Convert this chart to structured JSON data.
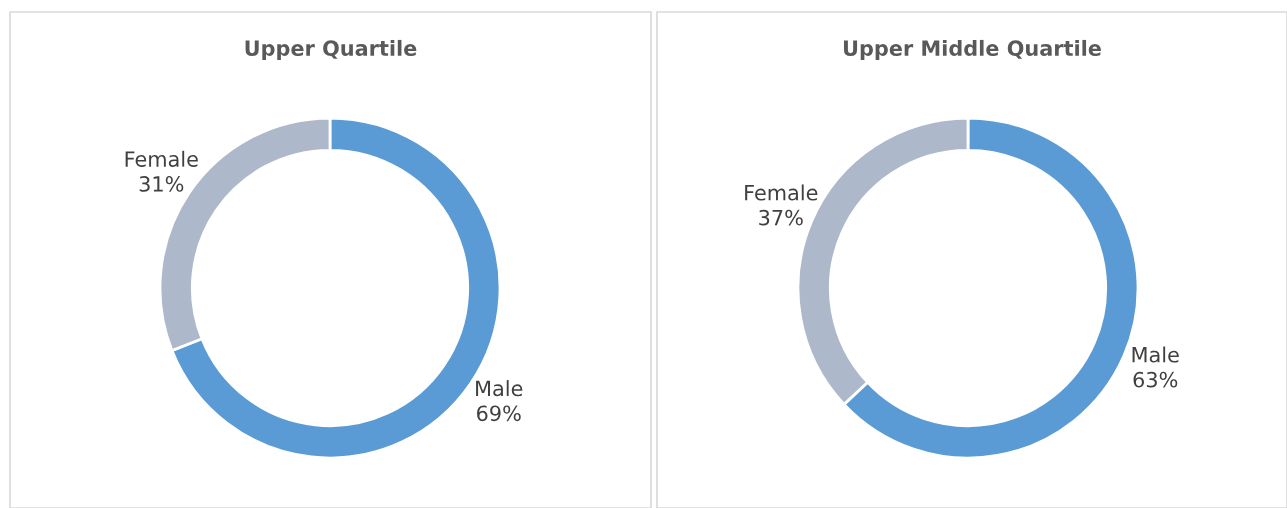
{
  "chart_data": [
    {
      "type": "donut",
      "title": "Upper Quartile",
      "categories": [
        "Male",
        "Female"
      ],
      "values": [
        69,
        31
      ],
      "colors": [
        "#5b9bd5",
        "#adb9ca"
      ],
      "value_labels": [
        "69%",
        "31%"
      ],
      "legend": false
    },
    {
      "type": "donut",
      "title": "Upper Middle Quartile",
      "categories": [
        "Male",
        "Female"
      ],
      "values": [
        63,
        37
      ],
      "colors": [
        "#5b9bd5",
        "#adb9ca"
      ],
      "value_labels": [
        "63%",
        "37%"
      ],
      "legend": false
    }
  ]
}
